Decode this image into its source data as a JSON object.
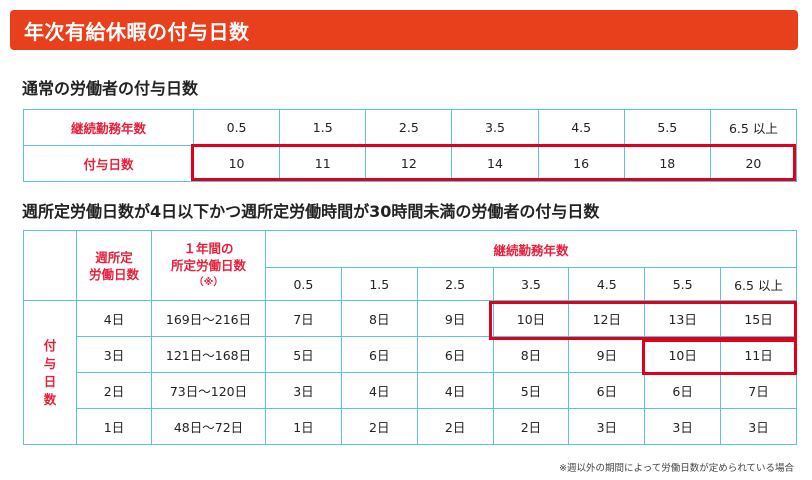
{
  "title": "年次有給休暇の付与日数",
  "section1": {
    "heading": "通常の労働者の付与日数",
    "row_labels": [
      "継続勤務年数",
      "付与日数"
    ],
    "years": [
      "0.5",
      "1.5",
      "2.5",
      "3.5",
      "4.5",
      "5.5",
      "6.5 以上"
    ],
    "days": [
      "10",
      "11",
      "12",
      "14",
      "16",
      "18",
      "20"
    ]
  },
  "section2": {
    "heading": "週所定労働日数が4日以下かつ週所定労働時間が30時間未満の労働者の付与日数",
    "col_weekly_days": "週所定\n労働日数",
    "col_annual_days": "１年間の\n所定労働日数",
    "col_annual_note": "（※）",
    "col_years_group": "継続勤務年数",
    "side_label": "付\n与\n日\n数",
    "years": [
      "0.5",
      "1.5",
      "2.5",
      "3.5",
      "4.5",
      "5.5",
      "6.5 以上"
    ],
    "rows": [
      {
        "weekly": "4日",
        "annual": "169日〜216日",
        "grants": [
          "7日",
          "8日",
          "9日",
          "10日",
          "12日",
          "13日",
          "15日"
        ]
      },
      {
        "weekly": "3日",
        "annual": "121日〜168日",
        "grants": [
          "5日",
          "6日",
          "6日",
          "8日",
          "9日",
          "10日",
          "11日"
        ]
      },
      {
        "weekly": "2日",
        "annual": "73日〜120日",
        "grants": [
          "3日",
          "4日",
          "4日",
          "5日",
          "6日",
          "6日",
          "7日"
        ]
      },
      {
        "weekly": "1日",
        "annual": "48日〜72日",
        "grants": [
          "1日",
          "2日",
          "2日",
          "2日",
          "3日",
          "3日",
          "3日"
        ]
      }
    ]
  },
  "footnote": "※週以外の期間によって労働日数が定められている場合",
  "colors": {
    "banner": "#e8401c",
    "header_text": "#e8203c",
    "border": "#5bc4dc",
    "highlight": "#e0001e"
  }
}
